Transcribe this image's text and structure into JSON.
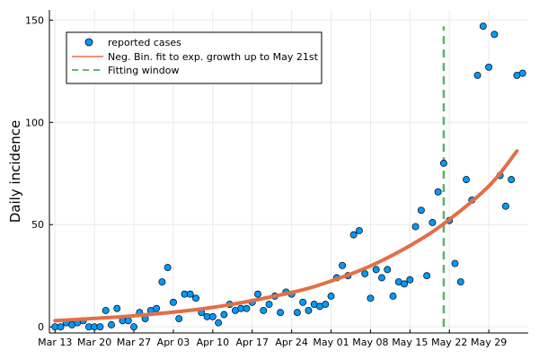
{
  "chart_data": {
    "type": "scatter",
    "xlabel": "",
    "ylabel": "Daily incidence",
    "xlim": [
      "2020-03-12",
      "2020-06-05"
    ],
    "ylim": [
      -3,
      155
    ],
    "grid": true,
    "legend_position": "top-left",
    "x_ticks": [
      {
        "date": "2020-03-13",
        "label": "Mar 13"
      },
      {
        "date": "2020-03-20",
        "label": "Mar 20"
      },
      {
        "date": "2020-03-27",
        "label": "Mar 27"
      },
      {
        "date": "2020-04-03",
        "label": "Apr 03"
      },
      {
        "date": "2020-04-10",
        "label": "Apr 10"
      },
      {
        "date": "2020-04-17",
        "label": "Apr 17"
      },
      {
        "date": "2020-04-24",
        "label": "Apr 24"
      },
      {
        "date": "2020-05-01",
        "label": "May 01"
      },
      {
        "date": "2020-05-08",
        "label": "May 08"
      },
      {
        "date": "2020-05-15",
        "label": "May 15"
      },
      {
        "date": "2020-05-22",
        "label": "May 22"
      },
      {
        "date": "2020-05-29",
        "label": "May 29"
      }
    ],
    "y_ticks": [
      {
        "value": 0,
        "label": "0"
      },
      {
        "value": 50,
        "label": "50"
      },
      {
        "value": 100,
        "label": "100"
      },
      {
        "value": 150,
        "label": "150"
      }
    ],
    "series": [
      {
        "name": "reported cases",
        "kind": "scatter",
        "color": "#009AFA",
        "start_date": "2020-03-13",
        "values": [
          0,
          0,
          2,
          1,
          2,
          3,
          0,
          0,
          0,
          8,
          1,
          9,
          3,
          3,
          0,
          7,
          4,
          8,
          9,
          22,
          29,
          12,
          4,
          16,
          16,
          14,
          7,
          5,
          5,
          2,
          6,
          11,
          8,
          9,
          9,
          12,
          16,
          8,
          11,
          15,
          7,
          17,
          16,
          7,
          12,
          8,
          11,
          10,
          11,
          15,
          24,
          30,
          25,
          45,
          47,
          26,
          14,
          28,
          24,
          28,
          15,
          22,
          21,
          23,
          49,
          57,
          25,
          51,
          66,
          80,
          52,
          31,
          22,
          72,
          62,
          123,
          147,
          127,
          143,
          74,
          59,
          72,
          123,
          124
        ]
      },
      {
        "name": "Neg. Bin. fit to exp. growth up to May 21st",
        "kind": "line",
        "color": "#E26F46",
        "x": [
          "2020-03-13",
          "2020-03-27",
          "2020-04-10",
          "2020-04-24",
          "2020-05-01",
          "2020-05-08",
          "2020-05-15",
          "2020-05-21",
          "2020-05-29",
          "2020-06-03"
        ],
        "values": [
          3,
          5.4,
          9.5,
          16.8,
          22.4,
          29.8,
          39.7,
          50.4,
          68.8,
          86
        ]
      },
      {
        "name": "Fitting window",
        "kind": "vline",
        "color": "#3EA44E",
        "x": "2020-05-21",
        "values": [
          0,
          147
        ]
      }
    ]
  }
}
